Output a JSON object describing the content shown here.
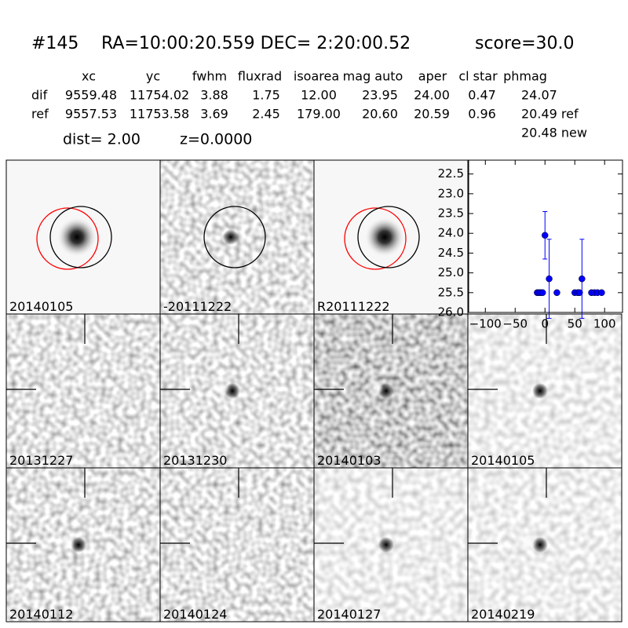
{
  "header": {
    "id": "#145",
    "coords": "RA=10:00:20.559 DEC= 2:20:00.52",
    "score": "score=30.0",
    "dist": "dist=  2.00",
    "z": "z=0.0000"
  },
  "table": {
    "columns": [
      "xc",
      "yc",
      "fwhm",
      "fluxrad",
      "isoarea",
      "mag auto",
      "aper",
      "cl star",
      "phmag"
    ],
    "rows": [
      [
        "dif",
        "9559.48",
        "11754.02",
        "3.88",
        "1.75",
        "12.00",
        "23.95",
        "24.00",
        "0.47",
        "24.07"
      ],
      [
        "ref",
        "9557.53",
        "11753.58",
        "3.69",
        "2.45",
        "179.00",
        "20.60",
        "20.59",
        "0.96",
        "20.49 ref"
      ]
    ],
    "note": "20.48 new"
  },
  "panels": [
    {
      "label": "20140105"
    },
    {
      "label": "-20111222"
    },
    {
      "label": "R20111222"
    },
    {
      "label": "20131227"
    },
    {
      "label": "20131230"
    },
    {
      "label": "20140103"
    },
    {
      "label": "20140105",
      "label_color": "#ff0000"
    },
    {
      "label": "20140112"
    },
    {
      "label": "20140124"
    },
    {
      "label": "20140127"
    },
    {
      "label": "20140219"
    }
  ],
  "chart_data": {
    "type": "scatter",
    "y_inverted": true,
    "xlim": [
      -128,
      130
    ],
    "xticks": [
      {
        "value": -100,
        "label": "−100"
      },
      {
        "value": -50,
        "label": "−50"
      },
      0,
      50,
      100
    ],
    "ylim": [
      22.15,
      26.0
    ],
    "yticks": [
      22.5,
      {
        "value": 23,
        "label": "23.0"
      },
      23.5,
      {
        "value": 24,
        "label": "24.0"
      },
      24.5,
      {
        "value": 25,
        "label": "25.0"
      },
      25.5,
      {
        "value": 26,
        "label": "26.0"
      }
    ],
    "series": [
      {
        "color": "#0000ff",
        "x": [
          -13,
          -10,
          -7,
          -4,
          0,
          7,
          20,
          50,
          55,
          58,
          62,
          78,
          83,
          88,
          95
        ],
        "values": [
          25.5,
          25.5,
          25.5,
          25.5,
          24.05,
          25.15,
          25.5,
          25.5,
          25.5,
          25.5,
          25.15,
          25.5,
          25.5,
          25.5,
          25.5
        ],
        "errors": [
          0.05,
          0.05,
          0.05,
          0.05,
          0.6,
          1.0,
          0.05,
          0.05,
          0.05,
          0.05,
          1.0,
          0.05,
          0.05,
          0.05,
          0.05
        ]
      }
    ]
  }
}
